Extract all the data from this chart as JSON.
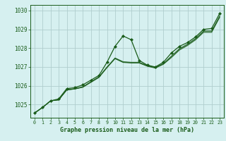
{
  "title": "Graphe pression niveau de la mer (hPa)",
  "bg_color": "#d6f0f0",
  "grid_color": "#b0cece",
  "line_color": "#1a5c1a",
  "marker_color": "#1a5c1a",
  "xlim": [
    -0.5,
    23.5
  ],
  "ylim": [
    1024.3,
    1030.3
  ],
  "yticks": [
    1025,
    1026,
    1027,
    1028,
    1029,
    1030
  ],
  "xticks": [
    0,
    1,
    2,
    3,
    4,
    5,
    6,
    7,
    8,
    9,
    10,
    11,
    12,
    13,
    14,
    15,
    16,
    17,
    18,
    19,
    20,
    21,
    22,
    23
  ],
  "main_series": [
    1024.55,
    1024.85,
    1025.2,
    1025.3,
    1025.85,
    1025.9,
    1026.05,
    1026.3,
    1026.55,
    1027.25,
    1028.1,
    1028.65,
    1028.45,
    1027.35,
    1027.1,
    1027.0,
    1027.25,
    1027.75,
    1028.1,
    1028.3,
    1028.6,
    1029.0,
    1029.05,
    1029.85
  ],
  "trend_lines": [
    [
      1024.55,
      1024.85,
      1025.2,
      1025.25,
      1025.78,
      1025.85,
      1025.95,
      1026.22,
      1026.48,
      1027.0,
      1027.48,
      1027.28,
      1027.25,
      1027.25,
      1027.08,
      1026.98,
      1027.18,
      1027.58,
      1027.98,
      1028.22,
      1028.52,
      1028.92,
      1028.92,
      1029.72
    ],
    [
      1024.55,
      1024.85,
      1025.2,
      1025.25,
      1025.78,
      1025.83,
      1025.93,
      1026.2,
      1026.46,
      1026.98,
      1027.46,
      1027.26,
      1027.23,
      1027.23,
      1027.06,
      1026.96,
      1027.16,
      1027.54,
      1027.94,
      1028.18,
      1028.48,
      1028.88,
      1028.88,
      1029.68
    ],
    [
      1024.55,
      1024.85,
      1025.2,
      1025.25,
      1025.78,
      1025.83,
      1025.92,
      1026.18,
      1026.44,
      1026.96,
      1027.44,
      1027.24,
      1027.21,
      1027.21,
      1027.04,
      1026.94,
      1027.14,
      1027.5,
      1027.9,
      1028.14,
      1028.44,
      1028.84,
      1028.84,
      1029.64
    ]
  ]
}
